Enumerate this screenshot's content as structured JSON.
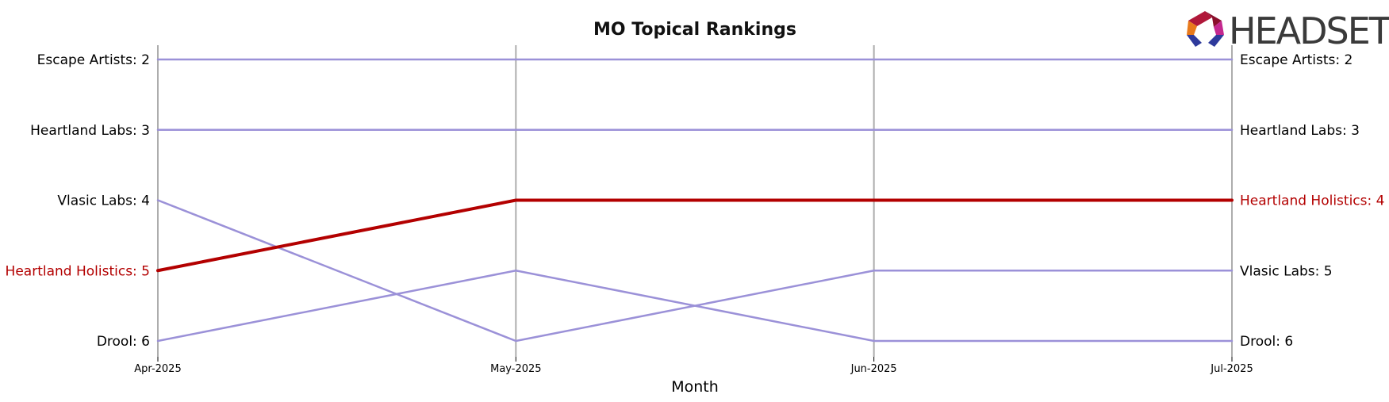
{
  "brand": {
    "logo_text": "HEADSET"
  },
  "chart_data": {
    "type": "line",
    "title": "MO Topical Rankings",
    "xlabel": "Month",
    "ylabel": "",
    "x": [
      "Apr-2025",
      "May-2025",
      "Jun-2025",
      "Jul-2025"
    ],
    "ylim": [
      6,
      2
    ],
    "y_inverted": true,
    "grid": "vertical",
    "highlight_color": "#b30000",
    "default_color": "#9b91d8",
    "series": [
      {
        "name": "Escape Artists",
        "values": [
          2,
          2,
          2,
          2
        ],
        "highlight": false
      },
      {
        "name": "Heartland Labs",
        "values": [
          3,
          3,
          3,
          3
        ],
        "highlight": false
      },
      {
        "name": "Vlasic Labs",
        "values": [
          4,
          6,
          5,
          5
        ],
        "highlight": false
      },
      {
        "name": "Heartland Holistics",
        "values": [
          5,
          4,
          4,
          4
        ],
        "highlight": true
      },
      {
        "name": "Drool",
        "values": [
          6,
          5,
          6,
          6
        ],
        "highlight": false
      }
    ],
    "left_labels": [
      {
        "text": "Escape Artists: 2",
        "rank": 2,
        "highlight": false
      },
      {
        "text": "Heartland Labs: 3",
        "rank": 3,
        "highlight": false
      },
      {
        "text": "Vlasic Labs: 4",
        "rank": 4,
        "highlight": false
      },
      {
        "text": "Heartland Holistics: 5",
        "rank": 5,
        "highlight": true
      },
      {
        "text": "Drool: 6",
        "rank": 6,
        "highlight": false
      }
    ],
    "right_labels": [
      {
        "text": "Escape Artists: 2",
        "rank": 2,
        "highlight": false
      },
      {
        "text": "Heartland Labs: 3",
        "rank": 3,
        "highlight": false
      },
      {
        "text": "Heartland Holistics: 4",
        "rank": 4,
        "highlight": true
      },
      {
        "text": "Vlasic Labs: 5",
        "rank": 5,
        "highlight": false
      },
      {
        "text": "Drool: 6",
        "rank": 6,
        "highlight": false
      }
    ]
  }
}
